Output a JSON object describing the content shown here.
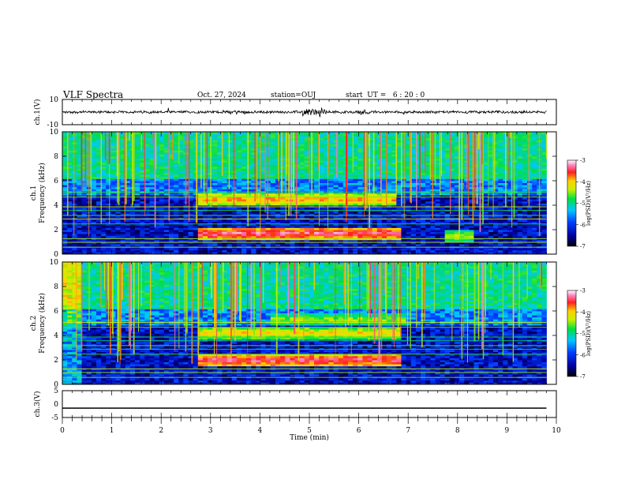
{
  "header": {
    "title": "VLF Spectra",
    "date": "Oct. 27, 2024",
    "station": "station=OUJ",
    "start": "start  UT =   6 : 20 : 0"
  },
  "chart_data": [
    {
      "id": "ch1",
      "type": "line",
      "ylabel": "ch.1(V)",
      "ylim": [
        -10,
        10
      ],
      "yticks": [
        "10",
        "-10"
      ],
      "xlim": [
        0,
        10
      ],
      "baseline": 0,
      "amplitude_note": "noisy waveform, largest excursions near 4.9-5.3 min"
    },
    {
      "id": "ch1_spectrogram",
      "type": "heatmap",
      "ylabel": "ch.1\nFrequency (kHz)",
      "ylim": [
        0,
        10
      ],
      "yticks": [
        "0",
        "2",
        "4",
        "6",
        "8",
        "10"
      ],
      "xlim": [
        0,
        10
      ],
      "data_end_min": 9.8,
      "colorbar": {
        "label": "log(PSD)(V²/Hz)",
        "range": [
          -7,
          -3
        ],
        "ticks": [
          "-3",
          "-4",
          "-5",
          "-6",
          "-7"
        ]
      },
      "bands": [
        {
          "freq_khz": 4.5,
          "t_start": 2.7,
          "t_end": 6.8,
          "level": -3.8
        },
        {
          "freq_khz": 1.7,
          "t_start": 2.7,
          "t_end": 6.9,
          "level": -3.3
        },
        {
          "freq_khz": 1.5,
          "t_start": 7.7,
          "t_end": 8.3,
          "level": -4.3
        }
      ]
    },
    {
      "id": "ch2_spectrogram",
      "type": "heatmap",
      "ylabel": "ch.2\nFrequency (kHz)",
      "ylim": [
        0,
        10
      ],
      "yticks": [
        "0",
        "2",
        "4",
        "6",
        "8",
        "10"
      ],
      "xlim": [
        0,
        10
      ],
      "data_end_min": 9.8,
      "colorbar": {
        "label": "log(PSD)(V²/Hz)",
        "range": [
          -7,
          -3
        ],
        "ticks": [
          "-3",
          "-4",
          "-5",
          "-6",
          "-7"
        ]
      },
      "bands": [
        {
          "freq_khz": 4.2,
          "t_start": 2.7,
          "t_end": 6.9,
          "level": -4.0
        },
        {
          "freq_khz": 2.0,
          "t_start": 2.7,
          "t_end": 6.9,
          "level": -3.3
        },
        {
          "freq_khz": 5.3,
          "t_start": 4.2,
          "t_end": 7.0,
          "level": -4.4
        }
      ]
    },
    {
      "id": "ch3",
      "type": "line",
      "ylabel": "ch.3(V)",
      "ylim": [
        -5,
        5
      ],
      "yticks": [
        "5",
        "0",
        "-5"
      ],
      "xlim": [
        0,
        10
      ],
      "x": [
        0,
        9.8
      ],
      "y": [
        -1.5,
        -1.5
      ],
      "xlabel": "Time (min)",
      "xticks": [
        "0",
        "1",
        "2",
        "3",
        "4",
        "5",
        "6",
        "7",
        "8",
        "9",
        "10"
      ]
    }
  ]
}
